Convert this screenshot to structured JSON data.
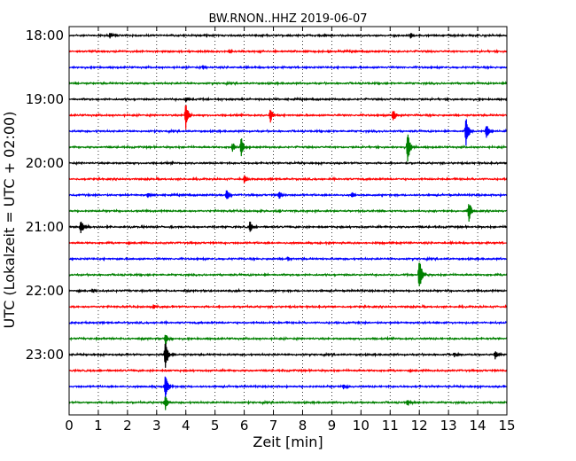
{
  "chart_data": {
    "type": "line",
    "title": "BW.RNON..HHZ 2019-06-07",
    "xlabel": "Zeit  [min]",
    "ylabel": "UTC (Lokalzeit = UTC + 02:00)",
    "xlim": [
      0,
      15
    ],
    "x_ticks": [
      0,
      1,
      2,
      3,
      4,
      5,
      6,
      7,
      8,
      9,
      10,
      11,
      12,
      13,
      14,
      15
    ],
    "x_tick_labels": [
      "0",
      "1",
      "2",
      "3",
      "4",
      "5",
      "6",
      "7",
      "8",
      "9",
      "10",
      "11",
      "12",
      "13",
      "14",
      "15"
    ],
    "grid": true,
    "trace_colors": [
      "#000000",
      "#ff0000",
      "#0000ff",
      "#008000"
    ],
    "traces": [
      {
        "start": "18:00",
        "label": "18:00",
        "events": [
          {
            "t": 1.4,
            "amp": 0.3
          },
          {
            "t": 11.7,
            "amp": 0.3
          }
        ]
      },
      {
        "start": "18:15",
        "label": "",
        "events": [
          {
            "t": 5.5,
            "amp": 0.2
          }
        ]
      },
      {
        "start": "18:30",
        "label": "",
        "events": [
          {
            "t": 4.6,
            "amp": 0.2
          }
        ]
      },
      {
        "start": "18:45",
        "label": "",
        "events": []
      },
      {
        "start": "19:00",
        "label": "19:00",
        "events": [
          {
            "t": 4.0,
            "amp": 0.25
          }
        ]
      },
      {
        "start": "19:15",
        "label": "",
        "events": [
          {
            "t": 4.0,
            "amp": 1.1
          },
          {
            "t": 6.9,
            "amp": 0.6
          },
          {
            "t": 11.1,
            "amp": 0.6
          }
        ]
      },
      {
        "start": "19:30",
        "label": "",
        "events": [
          {
            "t": 13.6,
            "amp": 1.3
          },
          {
            "t": 14.3,
            "amp": 0.7
          }
        ]
      },
      {
        "start": "19:45",
        "label": "",
        "events": [
          {
            "t": 5.9,
            "amp": 0.9
          },
          {
            "t": 5.6,
            "amp": 0.4
          },
          {
            "t": 11.6,
            "amp": 1.3
          }
        ]
      },
      {
        "start": "20:00",
        "label": "20:00",
        "events": []
      },
      {
        "start": "20:15",
        "label": "",
        "events": [
          {
            "t": 6.0,
            "amp": 0.4
          }
        ]
      },
      {
        "start": "20:30",
        "label": "",
        "events": [
          {
            "t": 5.4,
            "amp": 0.5
          },
          {
            "t": 7.2,
            "amp": 0.4
          },
          {
            "t": 9.7,
            "amp": 0.3
          },
          {
            "t": 2.7,
            "amp": 0.25
          }
        ]
      },
      {
        "start": "20:45",
        "label": "",
        "events": [
          {
            "t": 13.7,
            "amp": 0.9
          }
        ]
      },
      {
        "start": "21:00",
        "label": "21:00",
        "events": [
          {
            "t": 0.4,
            "amp": 0.6
          },
          {
            "t": 6.2,
            "amp": 0.5
          }
        ]
      },
      {
        "start": "21:15",
        "label": "",
        "events": []
      },
      {
        "start": "21:30",
        "label": "",
        "events": [
          {
            "t": 7.5,
            "amp": 0.2
          }
        ]
      },
      {
        "start": "21:45",
        "label": "",
        "events": [
          {
            "t": 12.0,
            "amp": 1.5
          }
        ]
      },
      {
        "start": "22:00",
        "label": "22:00",
        "events": [
          {
            "t": 0.8,
            "amp": 0.2
          }
        ]
      },
      {
        "start": "22:15",
        "label": "",
        "events": [
          {
            "t": 2.9,
            "amp": 0.2
          }
        ]
      },
      {
        "start": "22:30",
        "label": "",
        "events": []
      },
      {
        "start": "22:45",
        "label": "",
        "events": [
          {
            "t": 3.3,
            "amp": 0.6
          }
        ]
      },
      {
        "start": "23:00",
        "label": "23:00",
        "events": [
          {
            "t": 3.3,
            "amp": 1.3
          },
          {
            "t": 14.6,
            "amp": 0.4
          },
          {
            "t": 13.2,
            "amp": 0.2
          }
        ]
      },
      {
        "start": "23:15",
        "label": "",
        "events": []
      },
      {
        "start": "23:30",
        "label": "",
        "events": [
          {
            "t": 3.3,
            "amp": 1.2
          },
          {
            "t": 9.4,
            "amp": 0.2
          }
        ]
      },
      {
        "start": "23:45",
        "label": "",
        "events": [
          {
            "t": 3.3,
            "amp": 0.6
          },
          {
            "t": 11.6,
            "amp": 0.3
          }
        ]
      }
    ]
  }
}
